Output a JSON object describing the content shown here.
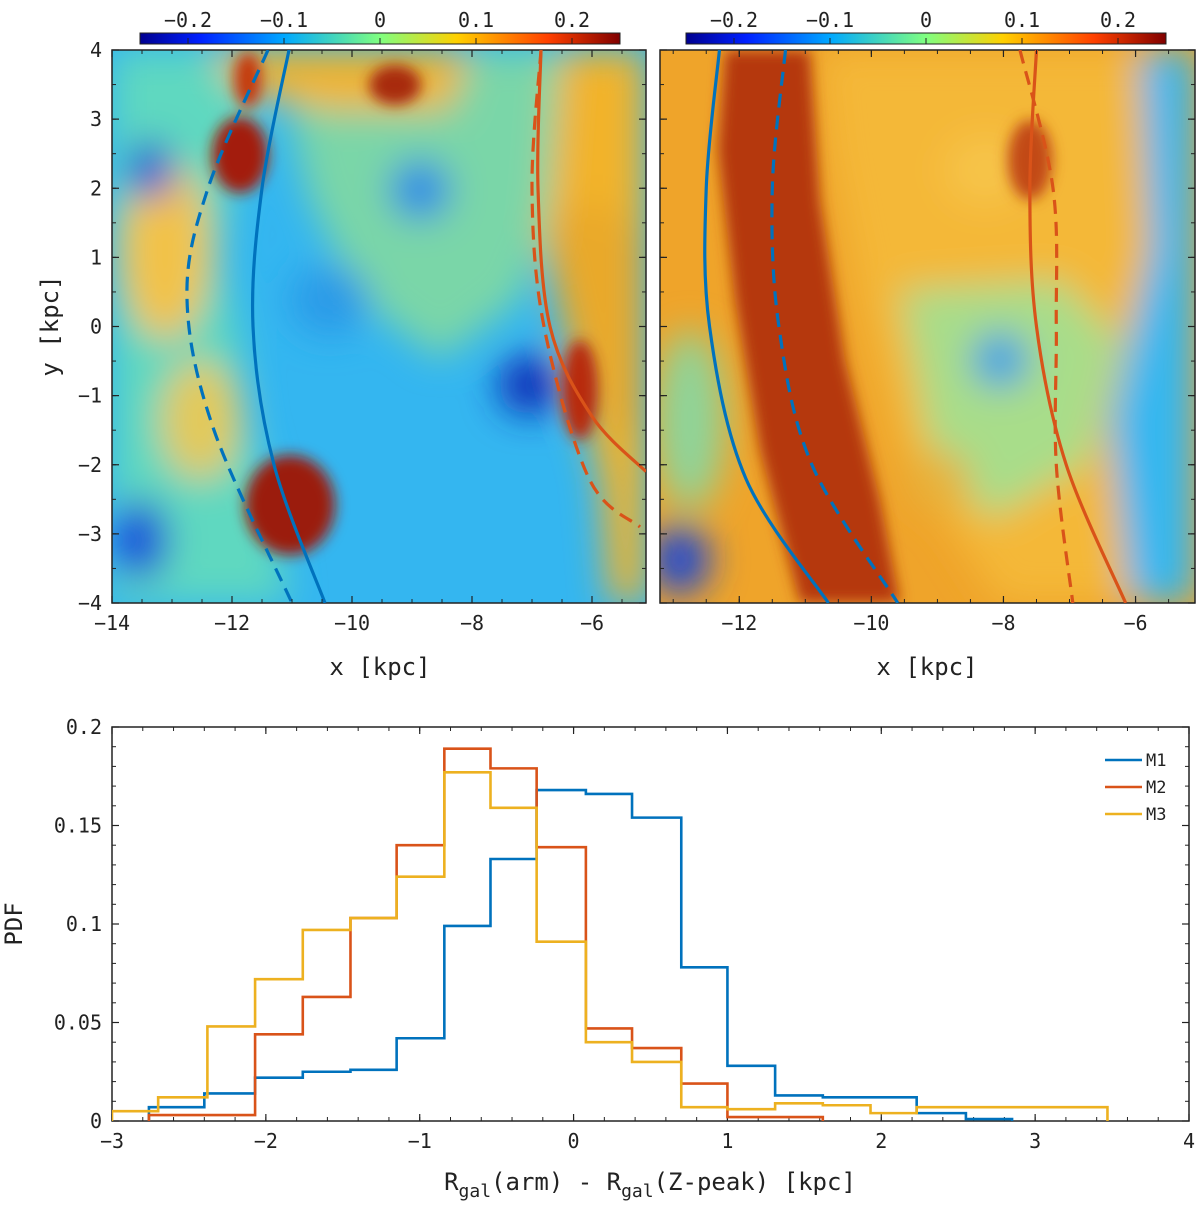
{
  "colors": {
    "blue": "#0072BD",
    "red": "#D95319",
    "yellow": "#EDB120",
    "axis": "#222222"
  },
  "colormap": "jet-like (dark blue to dark red)",
  "chart_data": [
    {
      "type": "heatmap",
      "panel": "top-left",
      "xlim": [
        -14,
        -5.1
      ],
      "ylim": [
        -4,
        4
      ],
      "xticks": [
        "-14",
        "-12",
        "-10",
        "-8",
        "-6"
      ],
      "yticks": [
        "-4",
        "-3",
        "-2",
        "-1",
        "0",
        "1",
        "2",
        "3",
        "4"
      ],
      "xlabel": "x [kpc]",
      "ylabel": "y [kpc]",
      "colorbar": {
        "range": [
          -0.25,
          0.25
        ],
        "ticks": [
          "-0.2",
          "-0.1",
          "0",
          "0.1",
          "0.2"
        ],
        "location": "top"
      },
      "arm_curves": [
        {
          "name": "blue-arm-solid",
          "color": "blue",
          "style": "solid",
          "points": [
            [
              -11.05,
              4
            ],
            [
              -11.5,
              2
            ],
            [
              -11.65,
              0
            ],
            [
              -11.3,
              -2
            ],
            [
              -10.45,
              -4
            ]
          ]
        },
        {
          "name": "blue-arm-dashed",
          "color": "blue",
          "style": "dashed",
          "points": [
            [
              -11.4,
              4
            ],
            [
              -12.4,
              2
            ],
            [
              -12.75,
              0.4
            ],
            [
              -12.3,
              -1.5
            ],
            [
              -11.0,
              -4
            ]
          ]
        },
        {
          "name": "red-arm-solid",
          "color": "red",
          "style": "solid",
          "points": [
            [
              -6.85,
              4
            ],
            [
              -6.9,
              2
            ],
            [
              -6.7,
              0
            ],
            [
              -6.0,
              -1.3
            ],
            [
              -5.1,
              -2.1
            ]
          ]
        },
        {
          "name": "red-arm-dashed",
          "color": "red",
          "style": "dashed",
          "points": [
            [
              -6.85,
              4
            ],
            [
              -7.0,
              2
            ],
            [
              -6.8,
              0
            ],
            [
              -6.05,
              -2.2
            ],
            [
              -5.2,
              -2.9
            ]
          ]
        }
      ]
    },
    {
      "type": "heatmap",
      "panel": "top-right",
      "xlim": [
        -13.2,
        -5.1
      ],
      "ylim": [
        -4,
        4
      ],
      "xticks": [
        "-12",
        "-10",
        "-8",
        "-6"
      ],
      "xlabel": "x [kpc]",
      "colorbar": {
        "range": [
          -0.25,
          0.25
        ],
        "ticks": [
          "-0.2",
          "-0.1",
          "0",
          "0.1",
          "0.2"
        ],
        "location": "top"
      },
      "arm_curves": [
        {
          "name": "blue-arm-solid",
          "color": "blue",
          "style": "solid",
          "points": [
            [
              -12.3,
              4
            ],
            [
              -12.5,
              2
            ],
            [
              -12.45,
              0
            ],
            [
              -11.9,
              -2.2
            ],
            [
              -10.65,
              -4
            ]
          ]
        },
        {
          "name": "blue-arm-dashed",
          "color": "blue",
          "style": "dashed",
          "points": [
            [
              -11.3,
              4
            ],
            [
              -11.5,
              2
            ],
            [
              -11.4,
              0
            ],
            [
              -10.9,
              -2
            ],
            [
              -9.6,
              -4
            ]
          ]
        },
        {
          "name": "red-arm-solid",
          "color": "red",
          "style": "solid",
          "points": [
            [
              -7.5,
              4
            ],
            [
              -7.6,
              2
            ],
            [
              -7.5,
              0
            ],
            [
              -7.05,
              -2
            ],
            [
              -6.15,
              -4
            ]
          ]
        },
        {
          "name": "red-arm-dashed",
          "color": "red",
          "style": "dashed",
          "points": [
            [
              -7.75,
              4
            ],
            [
              -7.25,
              2
            ],
            [
              -7.2,
              0
            ],
            [
              -7.2,
              -2
            ],
            [
              -6.95,
              -4
            ]
          ]
        }
      ]
    },
    {
      "type": "line",
      "panel": "bottom",
      "style": "step-histogram",
      "xlim": [
        -3,
        4
      ],
      "ylim": [
        0,
        0.2
      ],
      "xticks": [
        "-3",
        "-2",
        "-1",
        "0",
        "1",
        "2",
        "3",
        "4"
      ],
      "yticks": [
        "0",
        "0.05",
        "0.1",
        "0.15",
        "0.2"
      ],
      "xlabel_parts": [
        "R",
        "gal",
        "(arm) - R",
        "gal",
        "(Z-peak) [kpc]"
      ],
      "ylabel": "PDF",
      "legend_position": "top-right",
      "series": [
        {
          "name": "M1",
          "color": "blue",
          "edges": [
            -2.76,
            -2.4,
            -2.07,
            -1.76,
            -1.45,
            -1.15,
            -0.84,
            -0.54,
            -0.24,
            0.08,
            0.38,
            0.7,
            1.0,
            1.31,
            1.62,
            1.93,
            2.23,
            2.55,
            2.85
          ],
          "values": [
            0.007,
            0.014,
            0.022,
            0.025,
            0.026,
            0.042,
            0.099,
            0.133,
            0.168,
            0.166,
            0.154,
            0.078,
            0.028,
            0.013,
            0.012,
            0.012,
            0.004,
            0.001
          ]
        },
        {
          "name": "M2",
          "color": "red",
          "edges": [
            -2.76,
            -2.4,
            -2.07,
            -1.76,
            -1.45,
            -1.15,
            -0.84,
            -0.54,
            -0.24,
            0.08,
            0.38,
            0.7,
            1.0,
            1.31,
            1.62
          ],
          "values": [
            0.003,
            0.003,
            0.044,
            0.063,
            0.103,
            0.14,
            0.189,
            0.179,
            0.139,
            0.047,
            0.037,
            0.019,
            0.002,
            0.002
          ]
        },
        {
          "name": "M3",
          "color": "yellow",
          "edges": [
            -3.0,
            -2.7,
            -2.38,
            -2.07,
            -1.76,
            -1.45,
            -1.15,
            -0.84,
            -0.54,
            -0.24,
            0.08,
            0.38,
            0.7,
            1.0,
            1.31,
            1.62,
            1.93,
            2.23,
            2.55,
            2.85,
            3.17,
            3.47
          ],
          "values": [
            0.005,
            0.012,
            0.048,
            0.072,
            0.097,
            0.103,
            0.124,
            0.177,
            0.159,
            0.091,
            0.04,
            0.03,
            0.007,
            0.006,
            0.009,
            0.008,
            0.004,
            0.007,
            0.007,
            0.007,
            0.007
          ]
        }
      ]
    }
  ]
}
